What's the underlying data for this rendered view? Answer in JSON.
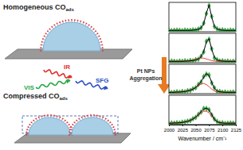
{
  "chart_data": [
    {
      "type": "line",
      "tick_labels": false,
      "x": [
        2000,
        2005,
        2010,
        2015,
        2020,
        2025,
        2030,
        2035,
        2040,
        2045,
        2050,
        2055,
        2060,
        2065,
        2070,
        2075,
        2080,
        2085,
        2090,
        2095,
        2100,
        2105,
        2110,
        2115,
        2120,
        2125
      ],
      "xlim": [
        2000,
        2125
      ],
      "ylim": [
        0,
        1.1
      ],
      "series": [
        {
          "type": "scatter",
          "marker": "diamond",
          "color": "#3cb34a",
          "values": [
            0.06,
            0.04,
            0.05,
            0.06,
            0.05,
            0.04,
            0.06,
            0.05,
            0.05,
            0.07,
            0.06,
            0.1,
            0.15,
            0.32,
            0.68,
            0.98,
            0.57,
            0.19,
            0.11,
            0.06,
            0.07,
            0.05,
            0.04,
            0.06,
            0.05,
            0.05
          ]
        },
        {
          "type": "line",
          "line_style": "solid",
          "color": "#000000",
          "values": [
            0.05,
            0.05,
            0.05,
            0.05,
            0.05,
            0.05,
            0.05,
            0.05,
            0.05,
            0.06,
            0.07,
            0.09,
            0.14,
            0.3,
            0.7,
            1.0,
            0.55,
            0.2,
            0.1,
            0.07,
            0.06,
            0.05,
            0.05,
            0.05,
            0.05,
            0.05
          ]
        }
      ]
    },
    {
      "type": "line",
      "tick_labels": false,
      "x": [
        2000,
        2005,
        2010,
        2015,
        2020,
        2025,
        2030,
        2035,
        2040,
        2045,
        2050,
        2055,
        2060,
        2065,
        2070,
        2075,
        2080,
        2085,
        2090,
        2095,
        2100,
        2105,
        2110,
        2115,
        2120,
        2125
      ],
      "xlim": [
        2000,
        2125
      ],
      "ylim": [
        0,
        1.1
      ],
      "series": [
        {
          "type": "scatter",
          "marker": "diamond",
          "color": "#3cb34a",
          "values": [
            0.04,
            0.06,
            0.05,
            0.04,
            0.06,
            0.05,
            0.07,
            0.05,
            0.08,
            0.07,
            0.11,
            0.13,
            0.24,
            0.4,
            0.8,
            0.88,
            0.52,
            0.18,
            0.11,
            0.06,
            0.07,
            0.05,
            0.06,
            0.04,
            0.05,
            0.06
          ]
        },
        {
          "type": "line",
          "line_style": "solid",
          "color": "#e8423c",
          "values": [
            0.05,
            0.05,
            0.05,
            0.05,
            0.05,
            0.05,
            0.06,
            0.07,
            0.08,
            0.1,
            0.13,
            0.16,
            0.18,
            0.17,
            0.14,
            0.11,
            0.08,
            0.06,
            0.05,
            0.05,
            0.05,
            0.05,
            0.05,
            0.05,
            0.05,
            0.05
          ]
        },
        {
          "type": "line",
          "line_style": "solid",
          "color": "#000000",
          "values": [
            0.05,
            0.05,
            0.05,
            0.05,
            0.05,
            0.05,
            0.06,
            0.06,
            0.07,
            0.08,
            0.1,
            0.14,
            0.22,
            0.42,
            0.78,
            0.9,
            0.5,
            0.2,
            0.1,
            0.07,
            0.06,
            0.05,
            0.05,
            0.05,
            0.05,
            0.05
          ]
        }
      ]
    },
    {
      "type": "line",
      "tick_labels": false,
      "x": [
        2000,
        2005,
        2010,
        2015,
        2020,
        2025,
        2030,
        2035,
        2040,
        2045,
        2050,
        2055,
        2060,
        2065,
        2070,
        2075,
        2080,
        2085,
        2090,
        2095,
        2100,
        2105,
        2110,
        2115,
        2120,
        2125
      ],
      "xlim": [
        2000,
        2125
      ],
      "ylim": [
        0,
        1.1
      ],
      "series": [
        {
          "type": "scatter",
          "marker": "diamond",
          "color": "#3cb34a",
          "values": [
            0.06,
            0.04,
            0.05,
            0.07,
            0.05,
            0.08,
            0.07,
            0.11,
            0.12,
            0.18,
            0.22,
            0.34,
            0.43,
            0.64,
            0.73,
            0.7,
            0.4,
            0.22,
            0.09,
            0.08,
            0.05,
            0.06,
            0.04,
            0.05,
            0.06,
            0.05
          ]
        },
        {
          "type": "line",
          "line_style": "solid",
          "color": "#e8423c",
          "values": [
            0.05,
            0.05,
            0.05,
            0.05,
            0.06,
            0.07,
            0.08,
            0.1,
            0.13,
            0.17,
            0.23,
            0.3,
            0.36,
            0.38,
            0.34,
            0.26,
            0.17,
            0.1,
            0.07,
            0.06,
            0.05,
            0.05,
            0.05,
            0.05,
            0.05,
            0.05
          ]
        },
        {
          "type": "line",
          "line_style": "solid",
          "color": "#000000",
          "values": [
            0.05,
            0.05,
            0.05,
            0.06,
            0.06,
            0.07,
            0.08,
            0.1,
            0.13,
            0.17,
            0.23,
            0.32,
            0.45,
            0.62,
            0.75,
            0.68,
            0.42,
            0.2,
            0.1,
            0.07,
            0.06,
            0.05,
            0.05,
            0.05,
            0.05,
            0.05
          ]
        }
      ]
    },
    {
      "type": "line",
      "tick_labels": "x",
      "x_label": "Wavenumber / cm⁻¹",
      "x": [
        2000,
        2005,
        2010,
        2015,
        2020,
        2025,
        2030,
        2035,
        2040,
        2045,
        2050,
        2055,
        2060,
        2065,
        2070,
        2075,
        2080,
        2085,
        2090,
        2095,
        2100,
        2105,
        2110,
        2115,
        2120,
        2125
      ],
      "xlim": [
        2000,
        2125
      ],
      "xticks": [
        2000,
        2025,
        2050,
        2075,
        2100,
        2125
      ],
      "ylim": [
        0,
        1.1
      ],
      "series": [
        {
          "type": "scatter",
          "marker": "diamond",
          "color": "#3cb34a",
          "values": [
            0.05,
            0.06,
            0.05,
            0.07,
            0.06,
            0.09,
            0.1,
            0.13,
            0.15,
            0.22,
            0.27,
            0.38,
            0.47,
            0.6,
            0.6,
            0.56,
            0.36,
            0.21,
            0.12,
            0.06,
            0.07,
            0.04,
            0.05,
            0.06,
            0.05,
            0.05
          ]
        },
        {
          "type": "line",
          "line_style": "solid",
          "color": "#e8423c",
          "values": [
            0.05,
            0.05,
            0.06,
            0.06,
            0.07,
            0.08,
            0.1,
            0.12,
            0.16,
            0.21,
            0.28,
            0.36,
            0.44,
            0.5,
            0.5,
            0.44,
            0.32,
            0.19,
            0.11,
            0.07,
            0.06,
            0.05,
            0.05,
            0.05,
            0.05,
            0.05
          ]
        },
        {
          "type": "line",
          "line_style": "solid",
          "color": "#000000",
          "values": [
            0.05,
            0.05,
            0.06,
            0.06,
            0.07,
            0.08,
            0.1,
            0.12,
            0.16,
            0.21,
            0.28,
            0.37,
            0.48,
            0.58,
            0.62,
            0.55,
            0.38,
            0.2,
            0.11,
            0.07,
            0.06,
            0.05,
            0.05,
            0.05,
            0.05,
            0.05
          ]
        }
      ]
    }
  ],
  "diagram": {
    "top_label": {
      "text": "Homogeneous CO",
      "sub": "ads"
    },
    "bottom_label": {
      "text": "Compressed CO",
      "sub": "ads"
    },
    "beams": {
      "ir": "IR",
      "vis": "VIS",
      "sfg": "SFG"
    },
    "arrow_label": [
      "Pt NPs",
      "Aggregation"
    ]
  }
}
